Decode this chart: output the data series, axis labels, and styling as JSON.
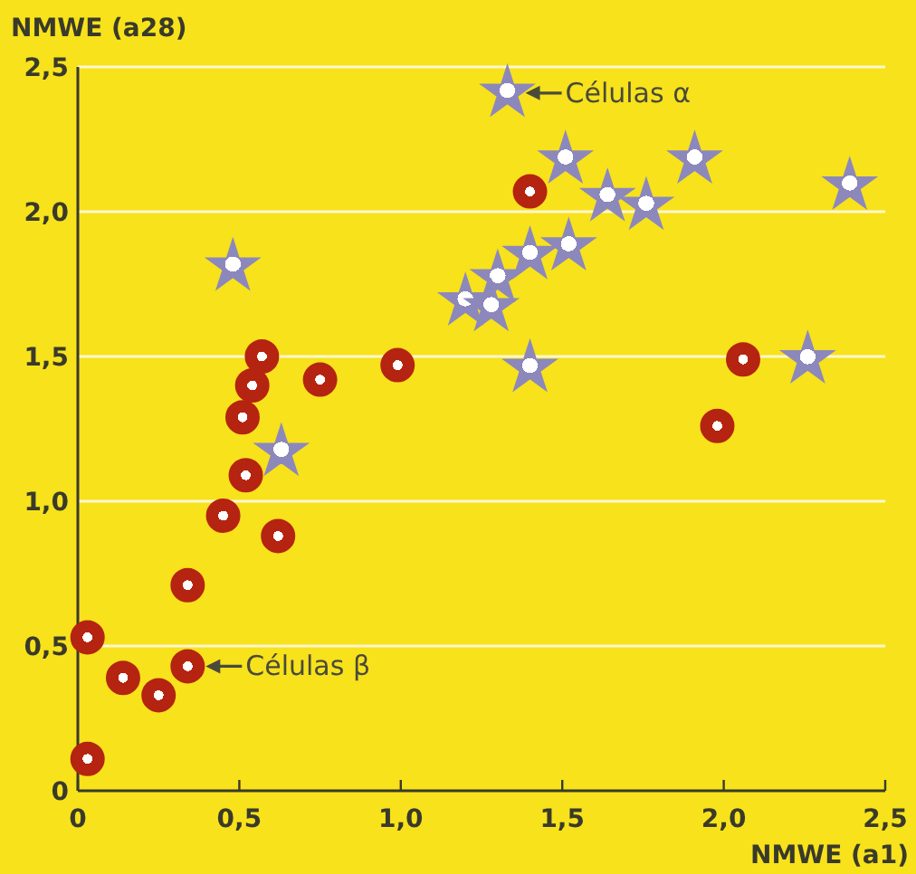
{
  "chart_data": {
    "type": "scatter",
    "xlabel": "NMWE (a1)",
    "ylabel": "NMWE (a28)",
    "xlim": [
      0,
      2.5
    ],
    "ylim": [
      0,
      2.5
    ],
    "xticks": [
      0,
      {
        "value": 0.5,
        "label": "0,5"
      },
      {
        "value": 1,
        "label": "1,0"
      },
      {
        "value": 1.5,
        "label": "1,5"
      },
      {
        "value": 2,
        "label": "2,0"
      },
      {
        "value": 2.5,
        "label": "2,5"
      }
    ],
    "yticks": [
      0,
      {
        "value": 0.5,
        "label": "0,5"
      },
      {
        "value": 1,
        "label": "1,0"
      },
      {
        "value": 1.5,
        "label": "1,5"
      },
      {
        "value": 2,
        "label": "2,0"
      },
      {
        "value": 2.5,
        "label": "2,5"
      }
    ],
    "grid": "y",
    "series": [
      {
        "color": "#b52410",
        "marker": "circle",
        "x": [
          0.03,
          0.03,
          0.14,
          0.25,
          0.34,
          0.34,
          0.45,
          0.52,
          0.51,
          0.54,
          0.57,
          0.62,
          0.75,
          0.99,
          1.4,
          2.06,
          1.98
        ],
        "values": [
          0.53,
          0.11,
          0.39,
          0.33,
          0.71,
          0.43,
          0.95,
          1.09,
          1.29,
          1.4,
          1.5,
          0.88,
          1.42,
          1.47,
          2.07,
          1.49,
          1.26
        ]
      },
      {
        "color": "#8c88bc",
        "marker": "star",
        "x": [
          0.48,
          0.63,
          1.33,
          1.51,
          1.91,
          1.64,
          1.76,
          2.39,
          1.4,
          1.52,
          1.3,
          1.2,
          1.28,
          1.4,
          2.26
        ],
        "values": [
          1.81,
          1.17,
          2.41,
          2.18,
          2.18,
          2.05,
          2.02,
          2.09,
          1.85,
          1.88,
          1.77,
          1.69,
          1.67,
          1.46,
          1.49
        ]
      }
    ],
    "annotations": [
      {
        "text": "Células α",
        "x": 1.33,
        "y": 2.41
      },
      {
        "text": "Células β",
        "x": 0.34,
        "y": 0.43
      }
    ]
  }
}
